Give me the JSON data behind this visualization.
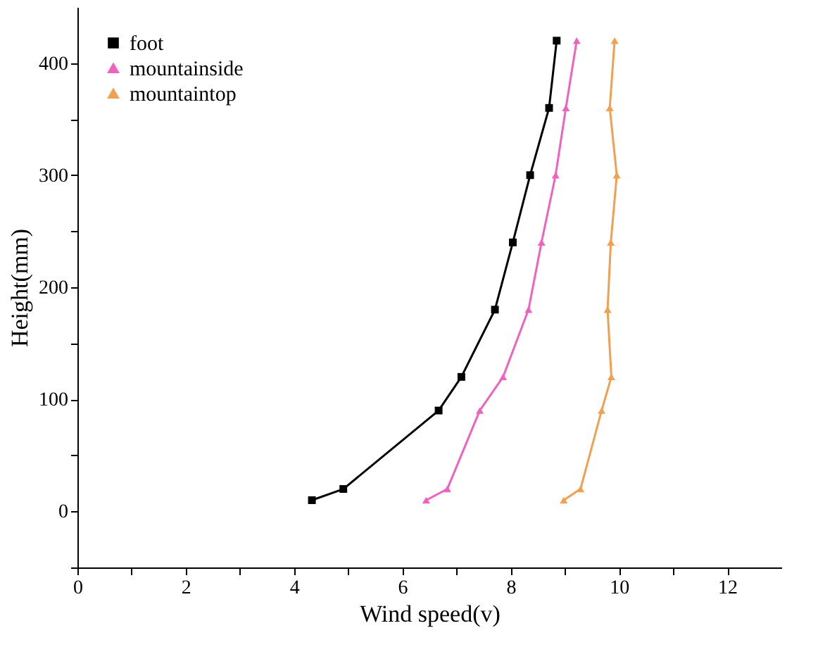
{
  "chart_data": {
    "type": "line",
    "xlabel": "Wind speed(v)",
    "ylabel": "Height(mm)",
    "xlim": [
      0,
      13
    ],
    "ylim": [
      -50,
      450
    ],
    "xticks": [
      0,
      {
        "value": 1,
        "label": null
      },
      2,
      {
        "value": 3,
        "label": null
      },
      4,
      {
        "value": 5,
        "label": null
      },
      6,
      {
        "value": 7,
        "label": null
      },
      8,
      {
        "value": 9,
        "label": null
      },
      10,
      {
        "value": 11,
        "label": null
      },
      12
    ],
    "yticks": [
      {
        "value": -50,
        "label": null
      },
      0,
      {
        "value": 50,
        "label": null
      },
      100,
      {
        "value": 150,
        "label": null
      },
      200,
      {
        "value": 250,
        "label": null
      },
      300,
      {
        "value": 350,
        "label": null
      },
      400
    ],
    "grid": false,
    "legend": "top left",
    "line_style": "solid",
    "series": [
      {
        "name": "foot",
        "color": "#000000",
        "marker": "square",
        "x": [
          4.33,
          4.91,
          6.67,
          7.09,
          7.71,
          8.04,
          8.36,
          8.71,
          8.85
        ],
        "values": [
          10,
          20,
          90,
          120,
          180,
          240,
          300,
          360,
          420
        ]
      },
      {
        "name": "mountainside",
        "color": "#f062c0",
        "marker": "triangle",
        "x": [
          6.44,
          6.83,
          7.43,
          7.86,
          8.33,
          8.57,
          8.83,
          9.02,
          9.22
        ],
        "values": [
          10,
          20,
          90,
          120,
          180,
          240,
          300,
          360,
          420
        ]
      },
      {
        "name": "mountaintop",
        "color": "#f0a050",
        "marker": "triangle",
        "x": [
          8.98,
          9.29,
          9.68,
          9.86,
          9.79,
          9.85,
          9.96,
          9.83,
          9.92
        ],
        "values": [
          10,
          20,
          90,
          120,
          180,
          240,
          300,
          360,
          420
        ]
      }
    ]
  }
}
